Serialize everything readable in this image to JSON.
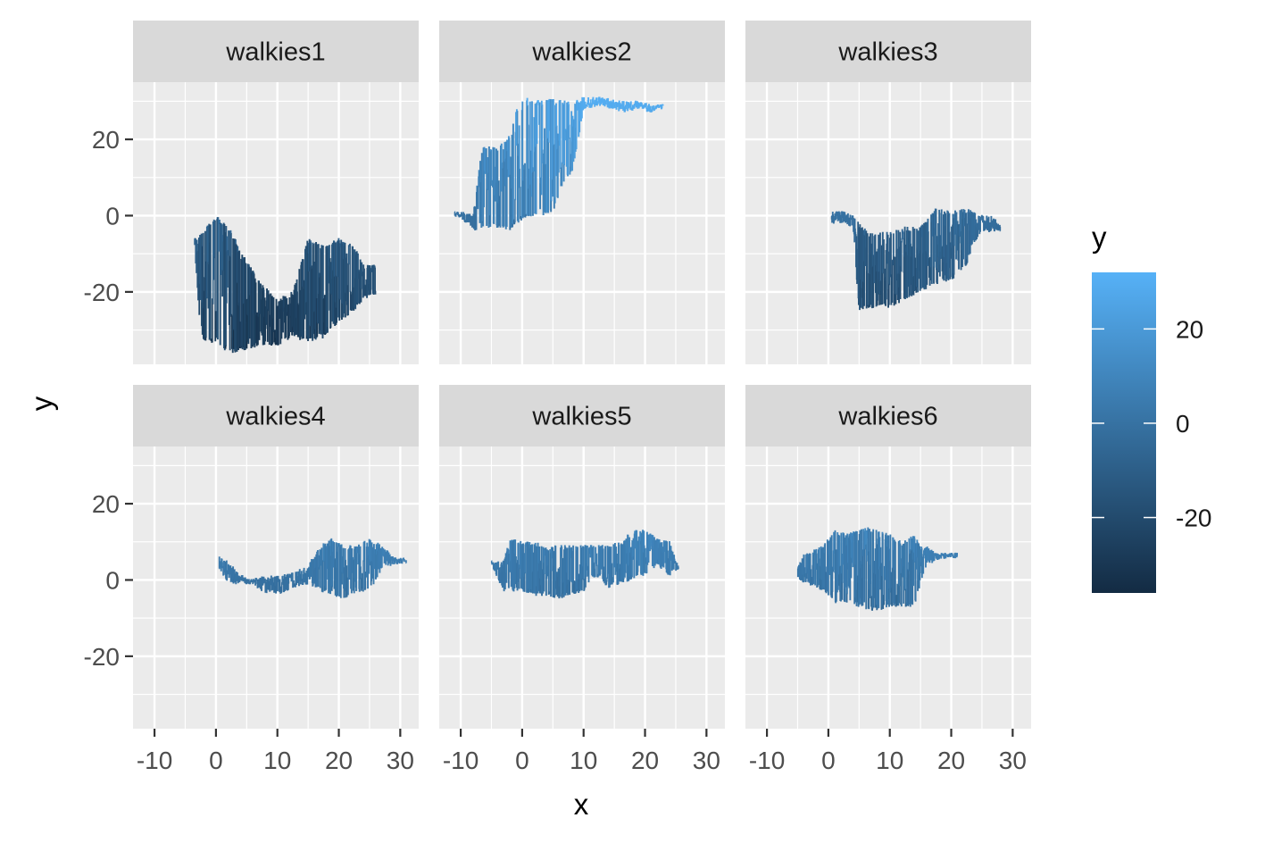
{
  "chart_data": {
    "type": "line",
    "style": "faceted step paths (ggplot2 facet_wrap)",
    "facets": [
      "walkies1",
      "walkies2",
      "walkies3",
      "walkies4",
      "walkies5",
      "walkies6"
    ],
    "xlabel": "x",
    "ylabel": "y",
    "xlim": [
      -13.5,
      33
    ],
    "ylim": [
      -39,
      35
    ],
    "x_ticks": [
      -10,
      0,
      10,
      20,
      30
    ],
    "x_tick_labels": [
      "-10",
      "0",
      "10",
      "20",
      "30"
    ],
    "y_ticks": [
      -20,
      0,
      20
    ],
    "y_tick_labels": [
      "-20",
      "0",
      "20"
    ],
    "colorbar": {
      "title": "y",
      "range": [
        -36,
        32
      ],
      "ticks": [
        -20,
        0,
        20
      ],
      "tick_labels": [
        "-20",
        "0",
        "20"
      ],
      "low_color": "#132B43",
      "high_color": "#56B1F7"
    },
    "walks": [
      {
        "name": "walkies1",
        "x_range": [
          -3.5,
          26
        ],
        "start_y": -6,
        "bands": [
          [
            -3.5,
            -7,
            -6
          ],
          [
            -2.5,
            -32,
            -5
          ],
          [
            0,
            -34,
            0
          ],
          [
            2.5,
            -36,
            -4
          ],
          [
            5,
            -35,
            -12
          ],
          [
            7.5,
            -34,
            -18
          ],
          [
            10,
            -34,
            -22
          ],
          [
            12.5,
            -32,
            -20
          ],
          [
            15,
            -33,
            -6
          ],
          [
            17.5,
            -32,
            -8
          ],
          [
            20,
            -28,
            -6
          ],
          [
            22.5,
            -25,
            -8
          ],
          [
            24,
            -22,
            -13
          ],
          [
            26,
            -21,
            -13
          ]
        ]
      },
      {
        "name": "walkies2",
        "x_range": [
          -11,
          23
        ],
        "start_y": 1,
        "bands": [
          [
            -11,
            0,
            1
          ],
          [
            -9,
            -2,
            1
          ],
          [
            -8,
            -4,
            0
          ],
          [
            -6.5,
            -4,
            18
          ],
          [
            -4,
            -3,
            18
          ],
          [
            -2,
            -4,
            21
          ],
          [
            -1,
            -2,
            28
          ],
          [
            0.5,
            -1,
            31
          ],
          [
            3,
            0,
            30
          ],
          [
            5,
            1,
            31
          ],
          [
            7,
            10,
            30
          ],
          [
            8,
            10,
            30
          ],
          [
            10,
            28,
            31
          ],
          [
            13,
            29,
            31
          ],
          [
            16,
            27,
            30
          ],
          [
            19,
            28,
            30
          ],
          [
            21,
            27,
            29
          ],
          [
            23,
            29,
            29
          ]
        ]
      },
      {
        "name": "walkies3",
        "x_range": [
          0.5,
          28
        ],
        "start_y": -1,
        "bands": [
          [
            0.5,
            -2,
            1
          ],
          [
            2.5,
            -2,
            1
          ],
          [
            4,
            -3,
            0
          ],
          [
            5,
            -25,
            -2
          ],
          [
            7.5,
            -24,
            -5
          ],
          [
            10,
            -24,
            -4
          ],
          [
            12.5,
            -22,
            -3
          ],
          [
            15,
            -20,
            -3
          ],
          [
            17.5,
            -18,
            2
          ],
          [
            20,
            -17,
            1
          ],
          [
            22.5,
            -13,
            2
          ],
          [
            24.5,
            -5,
            0
          ],
          [
            26.5,
            -4,
            0
          ],
          [
            28,
            -4,
            -2
          ]
        ]
      },
      {
        "name": "walkies4",
        "x_range": [
          0.5,
          31
        ],
        "start_y": 3,
        "bands": [
          [
            0.5,
            3,
            6
          ],
          [
            2,
            -1,
            5
          ],
          [
            3.5,
            -1,
            2
          ],
          [
            5.5,
            -1,
            0
          ],
          [
            7.5,
            -3,
            1
          ],
          [
            10,
            -4,
            1
          ],
          [
            12.5,
            -2,
            2
          ],
          [
            15,
            -1,
            4
          ],
          [
            17,
            -3,
            9
          ],
          [
            19,
            -4,
            11
          ],
          [
            21,
            -5,
            9
          ],
          [
            23,
            -3,
            9
          ],
          [
            25,
            -3,
            11
          ],
          [
            27,
            3,
            9
          ],
          [
            29,
            4,
            6
          ],
          [
            31,
            5,
            5
          ]
        ]
      },
      {
        "name": "walkies5",
        "x_range": [
          -5,
          25.5
        ],
        "start_y": 5,
        "bands": [
          [
            -5,
            4,
            5
          ],
          [
            -3,
            -3,
            5
          ],
          [
            -2,
            -3,
            11
          ],
          [
            0,
            -3,
            10
          ],
          [
            2,
            -4,
            10
          ],
          [
            4,
            -4,
            9
          ],
          [
            6,
            -5,
            9
          ],
          [
            8,
            -4,
            9
          ],
          [
            10,
            -3,
            9
          ],
          [
            12,
            1,
            9
          ],
          [
            14,
            -2,
            9
          ],
          [
            16,
            -1,
            10
          ],
          [
            18,
            0,
            13
          ],
          [
            20,
            1,
            13
          ],
          [
            22,
            4,
            11
          ],
          [
            24,
            1,
            10
          ],
          [
            25.5,
            3,
            3
          ]
        ]
      },
      {
        "name": "walkies6",
        "x_range": [
          -5,
          21
        ],
        "start_y": 3,
        "bands": [
          [
            -5,
            0,
            3
          ],
          [
            -4,
            -1,
            7
          ],
          [
            -2,
            -2,
            8
          ],
          [
            -0.5,
            -3,
            10
          ],
          [
            1,
            -6,
            13
          ],
          [
            3,
            -6,
            12
          ],
          [
            5,
            -7,
            13
          ],
          [
            6.5,
            -8,
            14
          ],
          [
            8,
            -8,
            13
          ],
          [
            10,
            -7,
            12
          ],
          [
            12,
            -7,
            10
          ],
          [
            14,
            -7,
            12
          ],
          [
            15,
            -1,
            9
          ],
          [
            16,
            4,
            9
          ],
          [
            17.5,
            5,
            7
          ],
          [
            19.5,
            6,
            7
          ],
          [
            21,
            6,
            7
          ]
        ]
      }
    ]
  }
}
